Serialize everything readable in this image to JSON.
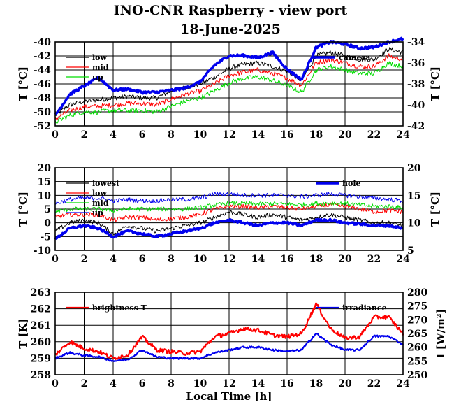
{
  "title": "INO-CNR Raspberry - view port",
  "subtitle": "18-June-2025",
  "xlabel": "Local Time [h]",
  "chart_data": [
    {
      "type": "line",
      "panel": "top",
      "ylabel": "T [°C]",
      "ylabel_right": "T [°C]",
      "xlim": [
        0,
        24
      ],
      "ylim": [
        -52,
        -40
      ],
      "ylim_right": [
        -42,
        -34
      ],
      "x_ticks": [
        "0",
        "2",
        "4",
        "6",
        "8",
        "10",
        "12",
        "14",
        "16",
        "18",
        "20",
        "22",
        "24"
      ],
      "y_ticks": [
        "-52",
        "-50",
        "-48",
        "-46",
        "-44",
        "-42",
        "-40"
      ],
      "y_ticks_right": [
        "-42",
        "-40",
        "-38",
        "-36",
        "-34"
      ],
      "grid": true,
      "legend": "left-top",
      "legend_right": "top-right",
      "series": [
        {
          "name": "low",
          "color": "#000000",
          "axis": "left",
          "x": [
            0,
            1,
            2,
            3,
            4,
            5,
            6,
            7,
            8,
            9,
            10,
            11,
            12,
            13,
            14,
            15,
            16,
            17,
            18,
            19,
            20,
            21,
            22,
            23,
            24
          ],
          "y": [
            -50.5,
            -49,
            -48.5,
            -48.3,
            -48,
            -47.8,
            -48,
            -48,
            -47,
            -46.5,
            -46,
            -45,
            -43.8,
            -43.2,
            -43,
            -43.5,
            -44.2,
            -45.5,
            -42,
            -41.5,
            -42,
            -42.5,
            -42.5,
            -41,
            -41.5
          ]
        },
        {
          "name": "mid",
          "color": "#ff0000",
          "axis": "left",
          "x": [
            0,
            1,
            2,
            3,
            4,
            5,
            6,
            7,
            8,
            9,
            10,
            11,
            12,
            13,
            14,
            15,
            16,
            17,
            18,
            19,
            20,
            21,
            22,
            23,
            24
          ],
          "y": [
            -51,
            -49.8,
            -49.3,
            -49.2,
            -49,
            -48.8,
            -48.8,
            -49,
            -48.2,
            -47.5,
            -47,
            -46,
            -44.8,
            -44.3,
            -44,
            -44.5,
            -45.2,
            -46.2,
            -43,
            -42.5,
            -43,
            -43.5,
            -43.5,
            -42,
            -42.5
          ]
        },
        {
          "name": "up",
          "color": "#00dd00",
          "axis": "left",
          "x": [
            0,
            1,
            2,
            3,
            4,
            5,
            6,
            7,
            8,
            9,
            10,
            11,
            12,
            13,
            14,
            15,
            16,
            17,
            18,
            19,
            20,
            21,
            22,
            23,
            24
          ],
          "y": [
            -51.5,
            -50.5,
            -50,
            -50,
            -49.8,
            -49.8,
            -49.8,
            -50,
            -49.2,
            -48.5,
            -48,
            -47,
            -45.8,
            -45.2,
            -45,
            -45.5,
            -46.2,
            -47.2,
            -44,
            -43.5,
            -44,
            -44.5,
            -44.5,
            -43,
            -43.5
          ]
        },
        {
          "name": "camera",
          "color": "#0000ee",
          "axis": "right",
          "x": [
            0,
            1,
            2,
            3,
            4,
            5,
            6,
            7,
            8,
            9,
            10,
            11,
            12,
            13,
            14,
            15,
            16,
            17,
            18,
            19,
            20,
            21,
            22,
            23,
            24
          ],
          "y": [
            -41,
            -39,
            -38.2,
            -37.4,
            -38.6,
            -38.5,
            -38.8,
            -38.8,
            -38.6,
            -38.4,
            -37.8,
            -36.2,
            -35.3,
            -35.3,
            -35.5,
            -35,
            -36.6,
            -37.6,
            -34.5,
            -34,
            -34.2,
            -34.6,
            -34.5,
            -34,
            -33.7
          ]
        }
      ]
    },
    {
      "type": "line",
      "panel": "middle",
      "ylabel": "T [°C]",
      "ylabel_right": "T [°C]",
      "xlim": [
        0,
        24
      ],
      "ylim": [
        -10,
        20
      ],
      "ylim_right": [
        5,
        20
      ],
      "x_ticks": [
        "0",
        "2",
        "4",
        "6",
        "8",
        "10",
        "12",
        "14",
        "16",
        "18",
        "20",
        "22",
        "24"
      ],
      "y_ticks": [
        "-10",
        "-5",
        "0",
        "5",
        "10",
        "15",
        "20"
      ],
      "y_ticks_right": [
        "5",
        "10",
        "15",
        "20"
      ],
      "grid": true,
      "legend": "left-top",
      "legend_right": "top-right",
      "series": [
        {
          "name": "lowest",
          "color": "#000000",
          "axis": "left",
          "x": [
            0,
            1,
            2,
            3,
            4,
            5,
            6,
            7,
            8,
            9,
            10,
            11,
            12,
            13,
            14,
            15,
            16,
            17,
            18,
            19,
            20,
            21,
            22,
            23,
            24
          ],
          "y": [
            -3,
            0,
            1,
            0,
            -4,
            -1,
            -2,
            -3,
            -2,
            -1,
            0,
            2,
            4,
            3,
            2,
            3,
            2,
            1,
            2,
            3,
            2,
            1,
            0,
            0,
            -1
          ]
        },
        {
          "name": "low",
          "color": "#ff0000",
          "axis": "left",
          "x": [
            0,
            1,
            2,
            3,
            4,
            5,
            6,
            7,
            8,
            9,
            10,
            11,
            12,
            13,
            14,
            15,
            16,
            17,
            18,
            19,
            20,
            21,
            22,
            23,
            24
          ],
          "y": [
            2,
            3,
            3,
            3,
            1,
            2,
            2,
            1,
            1.5,
            2,
            3,
            5,
            6,
            6,
            5.5,
            6,
            5.5,
            5,
            6,
            6.5,
            6,
            5,
            4,
            4.5,
            4
          ]
        },
        {
          "name": "mid",
          "color": "#00dd00",
          "axis": "left",
          "x": [
            0,
            1,
            2,
            3,
            4,
            5,
            6,
            7,
            8,
            9,
            10,
            11,
            12,
            13,
            14,
            15,
            16,
            17,
            18,
            19,
            20,
            21,
            22,
            23,
            24
          ],
          "y": [
            4,
            5,
            5,
            5,
            4.5,
            5,
            5,
            5,
            5,
            5,
            5.5,
            6.5,
            7,
            7,
            6.8,
            7,
            6.8,
            6.5,
            7,
            7.2,
            7,
            6.5,
            6,
            6,
            5.5
          ]
        },
        {
          "name": "up",
          "color": "#0000ee",
          "axis": "left",
          "x": [
            0,
            1,
            2,
            3,
            4,
            5,
            6,
            7,
            8,
            9,
            10,
            11,
            12,
            13,
            14,
            15,
            16,
            17,
            18,
            19,
            20,
            21,
            22,
            23,
            24
          ],
          "y": [
            7,
            8.5,
            9,
            9,
            8,
            8.5,
            8,
            8,
            8.5,
            8.5,
            9,
            10.5,
            10.5,
            10,
            10,
            10,
            10,
            9.5,
            10,
            10.5,
            10,
            9.5,
            9,
            8.5,
            8
          ]
        },
        {
          "name": "hole",
          "color": "#0000ee",
          "axis": "right",
          "x": [
            0,
            1,
            2,
            3,
            4,
            5,
            6,
            7,
            8,
            9,
            10,
            11,
            12,
            13,
            14,
            15,
            16,
            17,
            18,
            19,
            20,
            21,
            22,
            23,
            24
          ],
          "y": [
            7,
            9,
            9.5,
            9,
            7.5,
            8.5,
            8,
            7.5,
            8,
            8.5,
            9,
            10,
            10.5,
            10,
            9.5,
            10,
            10,
            9.5,
            10.5,
            10.5,
            10,
            9.8,
            9.5,
            9.5,
            9
          ]
        }
      ]
    },
    {
      "type": "line",
      "panel": "bottom",
      "ylabel": "T [K]",
      "ylabel_right": "I [W/m²]",
      "xlim": [
        0,
        24
      ],
      "ylim": [
        258,
        263
      ],
      "ylim_right": [
        250,
        280
      ],
      "x_ticks": [
        "0",
        "2",
        "4",
        "6",
        "8",
        "10",
        "12",
        "14",
        "16",
        "18",
        "20",
        "22",
        "24"
      ],
      "y_ticks": [
        "258",
        "259",
        "260",
        "261",
        "262",
        "263"
      ],
      "y_ticks_right": [
        "250",
        "255",
        "260",
        "265",
        "270",
        "275",
        "280"
      ],
      "grid": true,
      "legend": "left-top",
      "legend_right": "top-right",
      "series": [
        {
          "name": "brightness T",
          "color": "#ff0000",
          "axis": "left",
          "x": [
            0,
            1,
            2,
            3,
            4,
            5,
            6,
            7,
            8,
            9,
            10,
            11,
            12,
            13,
            14,
            15,
            16,
            17,
            18,
            19,
            20,
            21,
            22,
            23,
            24
          ],
          "y": [
            259.2,
            260,
            259.6,
            259.4,
            259,
            259.2,
            260.3,
            259.5,
            259.4,
            259.3,
            259.4,
            260.3,
            260.5,
            260.8,
            260.7,
            260.4,
            260.3,
            260.5,
            262.3,
            260.8,
            260.2,
            260.3,
            261.5,
            261.5,
            260.5
          ]
        },
        {
          "name": "irradiance",
          "color": "#0000ee",
          "axis": "right",
          "x": [
            0,
            1,
            2,
            3,
            4,
            5,
            6,
            7,
            8,
            9,
            10,
            11,
            12,
            13,
            14,
            15,
            16,
            17,
            18,
            19,
            20,
            21,
            22,
            23,
            24
          ],
          "y": [
            256,
            258,
            257,
            256.5,
            255,
            255.5,
            259,
            256.5,
            256,
            256,
            256,
            258,
            259,
            260,
            260,
            259,
            258.5,
            259,
            265,
            261,
            259,
            259,
            264,
            264,
            261
          ]
        }
      ]
    }
  ]
}
